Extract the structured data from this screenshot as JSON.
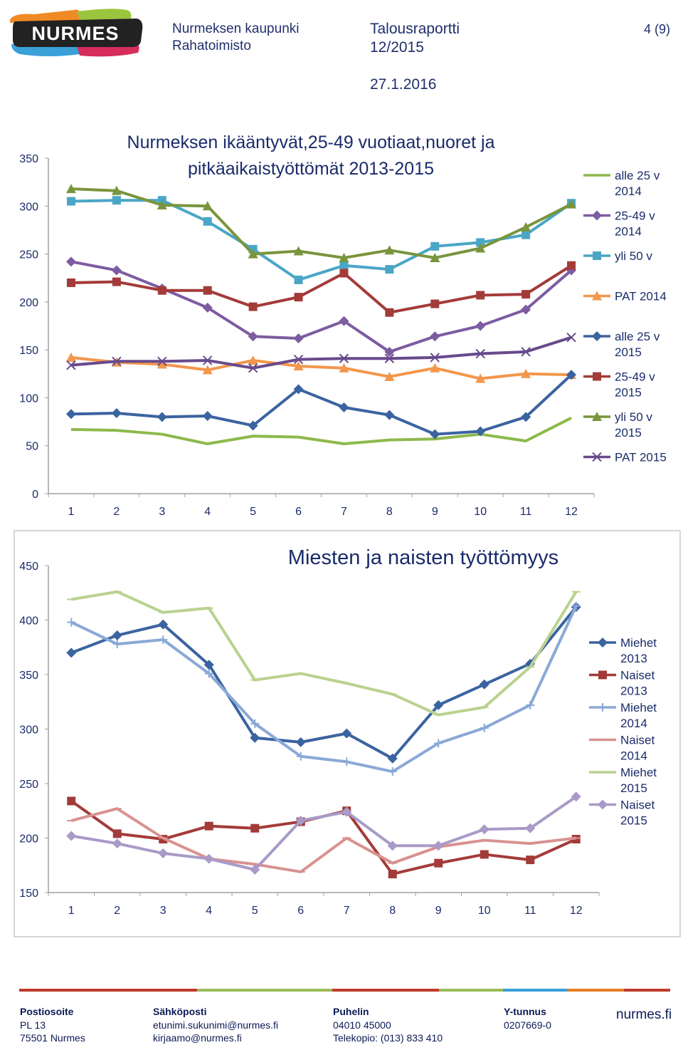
{
  "header": {
    "org_line1": "Nurmeksen kaupunki",
    "org_line2": "Rahatoimisto",
    "doc_line1": "Talousraportti",
    "doc_line2": "12/2015",
    "date": "27.1.2016",
    "page": "4 (9)",
    "logo_text": "NURMES"
  },
  "chart_data": [
    {
      "type": "line",
      "title": "Nurmeksen ikääntyvät,25-49 vuotiaat,nuoret ja pitkäaikaistyöttömät 2013-2015",
      "title_line1": "Nurmeksen ikääntyvät,25-49 vuotiaat,nuoret ja",
      "title_line2": "pitkäaikaistyöttömät 2013-2015",
      "categories": [
        "1",
        "2",
        "3",
        "4",
        "5",
        "6",
        "7",
        "8",
        "9",
        "10",
        "11",
        "12"
      ],
      "ylim": [
        0,
        350
      ],
      "yticks": [
        "0",
        "50",
        "100",
        "150",
        "200",
        "250",
        "300",
        "350"
      ],
      "legend_position": "right",
      "series": [
        {
          "name": "alle 25 v 2014",
          "legend_l1": "alle 25 v",
          "legend_l2": "2014",
          "marker": "none",
          "color": "#8db94c",
          "values": [
            67,
            66,
            62,
            52,
            60,
            59,
            52,
            56,
            57,
            62,
            55,
            79
          ]
        },
        {
          "name": "25-49 v 2014",
          "legend_l1": "25-49 v",
          "legend_l2": "2014",
          "marker": "diamond",
          "color": "#7d5ca1",
          "values": [
            242,
            233,
            214,
            194,
            164,
            162,
            180,
            148,
            164,
            175,
            192,
            233
          ]
        },
        {
          "name": "yli 50 v",
          "legend_l1": "yli 50 v",
          "legend_l2": "",
          "marker": "square",
          "color": "#4aa6c6",
          "values": [
            305,
            306,
            306,
            284,
            255,
            223,
            238,
            234,
            258,
            262,
            270,
            303
          ]
        },
        {
          "name": "PAT 2014",
          "legend_l1": "PAT 2014",
          "legend_l2": "",
          "marker": "triangle",
          "color": "#f2974b",
          "values": [
            142,
            137,
            135,
            129,
            139,
            133,
            131,
            122,
            131,
            120,
            125,
            124
          ]
        },
        {
          "name": "alle 25 v 2015",
          "legend_l1": "alle 25 v",
          "legend_l2": "2015",
          "marker": "diamond",
          "color": "#3b63a0",
          "values": [
            83,
            84,
            80,
            81,
            71,
            109,
            90,
            82,
            62,
            65,
            80,
            124
          ]
        },
        {
          "name": "25-49 v 2015",
          "legend_l1": "25-49 v",
          "legend_l2": "2015",
          "marker": "square",
          "color": "#a33b39",
          "values": [
            220,
            221,
            212,
            212,
            195,
            205,
            230,
            189,
            198,
            207,
            208,
            238
          ]
        },
        {
          "name": "yli 50 v 2015",
          "legend_l1": "yli 50 v",
          "legend_l2": "2015",
          "marker": "triangle",
          "color": "#79953d",
          "values": [
            318,
            316,
            301,
            300,
            250,
            253,
            246,
            254,
            246,
            256,
            278,
            302
          ]
        },
        {
          "name": "PAT 2015",
          "legend_l1": "PAT 2015",
          "legend_l2": "",
          "marker": "x",
          "color": "#684a8c",
          "values": [
            134,
            138,
            138,
            139,
            131,
            140,
            141,
            141,
            142,
            146,
            148,
            163
          ]
        }
      ]
    },
    {
      "type": "line",
      "title": "Miesten ja naisten työttömyys",
      "categories": [
        "1",
        "2",
        "3",
        "4",
        "5",
        "6",
        "7",
        "8",
        "9",
        "10",
        "11",
        "12"
      ],
      "ylim": [
        150,
        450
      ],
      "yticks": [
        "150",
        "200",
        "250",
        "300",
        "350",
        "400",
        "450"
      ],
      "legend_position": "right",
      "series": [
        {
          "name": "Miehet 2013",
          "legend_l1": "Miehet",
          "legend_l2": "2013",
          "marker": "diamond",
          "color": "#3b63a0",
          "values": [
            370,
            386,
            396,
            359,
            292,
            288,
            296,
            273,
            322,
            341,
            360,
            412
          ]
        },
        {
          "name": "Naiset 2013",
          "legend_l1": "Naiset",
          "legend_l2": "2013",
          "marker": "square",
          "color": "#a33b39",
          "values": [
            234,
            204,
            199,
            211,
            209,
            215,
            225,
            167,
            177,
            185,
            180,
            199
          ]
        },
        {
          "name": "Miehet 2014",
          "legend_l1": "Miehet",
          "legend_l2": "2014",
          "marker": "plus",
          "color": "#8aa9d6",
          "values": [
            398,
            378,
            382,
            351,
            305,
            275,
            270,
            261,
            287,
            301,
            322,
            413
          ]
        },
        {
          "name": "Naiset 2014",
          "legend_l1": "Naiset",
          "legend_l2": "2014",
          "marker": "dash",
          "color": "#d89290",
          "values": [
            216,
            227,
            200,
            181,
            176,
            169,
            200,
            177,
            192,
            198,
            195,
            200
          ]
        },
        {
          "name": "Miehet 2015",
          "legend_l1": "Miehet",
          "legend_l2": "2015",
          "marker": "dash",
          "color": "#b9d28f",
          "values": [
            419,
            426,
            407,
            411,
            345,
            351,
            342,
            332,
            313,
            320,
            357,
            426
          ]
        },
        {
          "name": "Naiset 2015",
          "legend_l1": "Naiset",
          "legend_l2": "2015",
          "marker": "diamond",
          "color": "#a99ac8",
          "values": [
            202,
            195,
            186,
            181,
            171,
            216,
            224,
            193,
            193,
            208,
            209,
            238
          ]
        }
      ]
    }
  ],
  "footer": {
    "col1": {
      "heading": "Postiosoite",
      "line1": "PL 13",
      "line2": "75501 Nurmes"
    },
    "col2": {
      "heading": "Sähköposti",
      "line1": "etunimi.sukunimi@nurmes.fi",
      "line2": "kirjaamo@nurmes.fi"
    },
    "col3": {
      "heading": "Puhelin",
      "line1": "04010 45000",
      "line2": "Telekopio: (013) 833 410"
    },
    "col4": {
      "heading": "Y-tunnus",
      "line1": "0207669-0",
      "line2": ""
    },
    "website": "nurmes.fi"
  },
  "colors": {
    "text_blue": "#1f2f6b",
    "footer_bar": [
      "#c0392b",
      "#9bbb59",
      "#3a9fd8",
      "#e67e22",
      "#9bbb59"
    ]
  }
}
